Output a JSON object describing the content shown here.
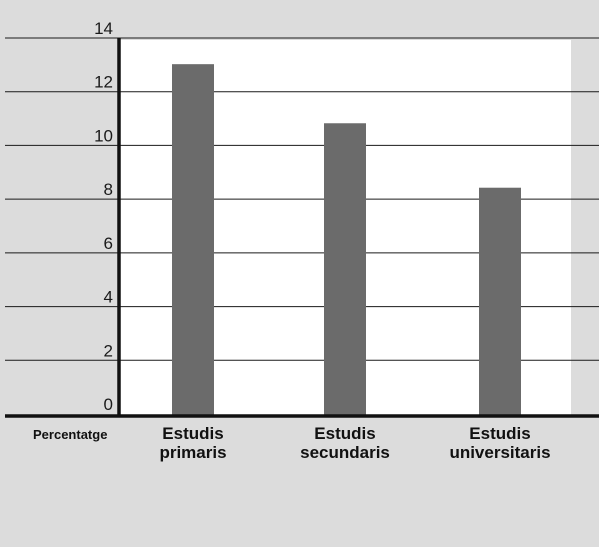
{
  "chart_data": {
    "type": "bar",
    "categories": [
      [
        "Estudis",
        "primaris"
      ],
      [
        "Estudis",
        "secundaris"
      ],
      [
        "Estudis",
        "universitaris"
      ]
    ],
    "values": [
      13.1,
      10.9,
      8.5
    ],
    "ylabel": "Percentatge",
    "ylim": [
      0,
      14
    ],
    "yticks": [
      "0",
      "2",
      "4",
      "6",
      "8",
      "10",
      "12",
      "14"
    ],
    "grid": true,
    "colors": {
      "bar": "#6b6b6b",
      "plot_bg": "#ffffff",
      "page_bg": "#dcdcdc",
      "axis": "#111111",
      "grid": "#1a1a1a"
    }
  }
}
